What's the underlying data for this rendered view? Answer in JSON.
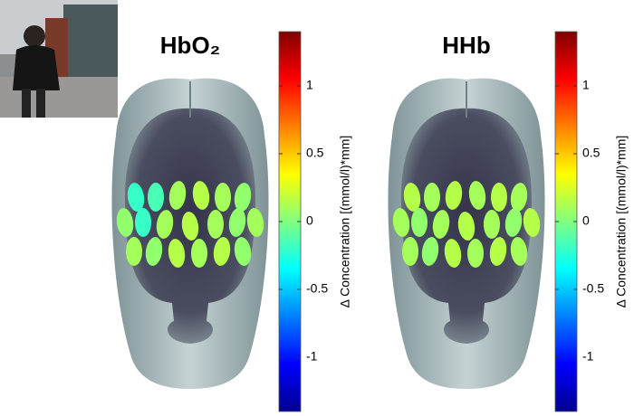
{
  "panels": [
    {
      "title": "HbO₂",
      "colorbar": {
        "label": "Δ Concentration [(mmol/l)*mm]",
        "clim": [
          -1.4,
          1.4
        ],
        "ticks": [
          1,
          0.5,
          0,
          -0.5,
          -1
        ]
      },
      "channels": [
        -0.2,
        -0.15,
        0.1,
        0.15,
        0.1,
        0.05,
        0.05,
        -0.2,
        0.1,
        0.15,
        0.1,
        0.05,
        0.1,
        0.1,
        0.05,
        0.15,
        0.1,
        0.15,
        0.05
      ]
    },
    {
      "title": "HHb",
      "colorbar": {
        "label": "Δ Concentration [(mmol/l)*mm]",
        "clim": [
          -1.4,
          1.4
        ],
        "ticks": [
          1,
          0.5,
          0,
          -0.5,
          -1
        ]
      },
      "channels": [
        0.15,
        0.1,
        0.15,
        0.1,
        0.15,
        0.1,
        0.1,
        0.05,
        0.1,
        0.15,
        0.1,
        0.05,
        0.15,
        0.1,
        0.05,
        0.15,
        0.1,
        0.15,
        0.1
      ]
    }
  ]
}
